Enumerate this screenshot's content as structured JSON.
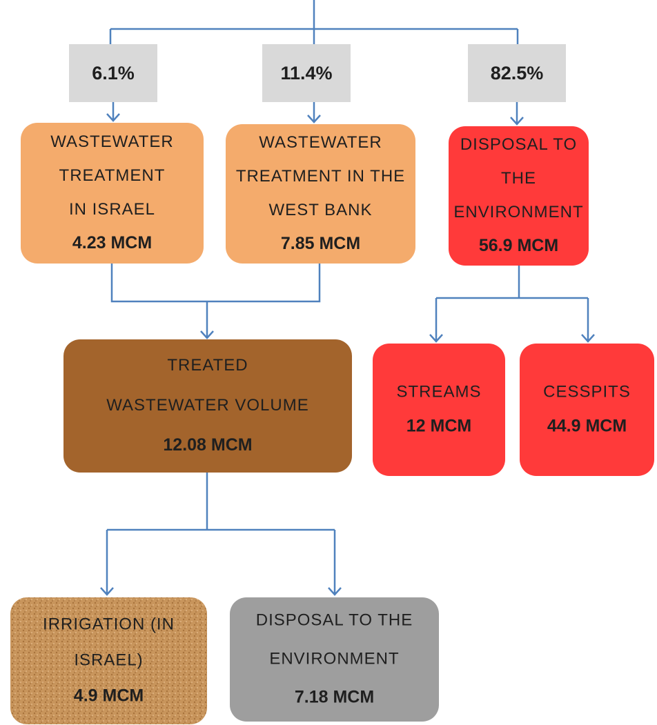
{
  "percentages": [
    "6.1%",
    "11.4%",
    "82.5%"
  ],
  "nodes": [
    {
      "lines": [
        "WASTEWATER",
        "TREATMENT",
        "IN ISRAEL"
      ],
      "value": "4.23 MCM"
    },
    {
      "lines": [
        "WASTEWATER",
        "TREATMENT IN THE",
        "WEST BANK"
      ],
      "value": "7.85 MCM"
    },
    {
      "lines": [
        "DISPOSAL TO",
        "THE",
        "ENVIRONMENT"
      ],
      "value": "56.9 MCM"
    },
    {
      "lines": [
        "TREATED",
        "WASTEWATER VOLUME"
      ],
      "value": "12.08 MCM"
    },
    {
      "lines": [
        "STREAMS"
      ],
      "value": "12 MCM"
    },
    {
      "lines": [
        "CESSPITS"
      ],
      "value": "44.9 MCM"
    },
    {
      "lines": [
        "IRRIGATION (IN",
        "ISRAEL)"
      ],
      "value": "4.9 MCM"
    },
    {
      "lines": [
        "DISPOSAL TO THE",
        "ENVIRONMENT"
      ],
      "value": "7.18 MCM"
    }
  ]
}
